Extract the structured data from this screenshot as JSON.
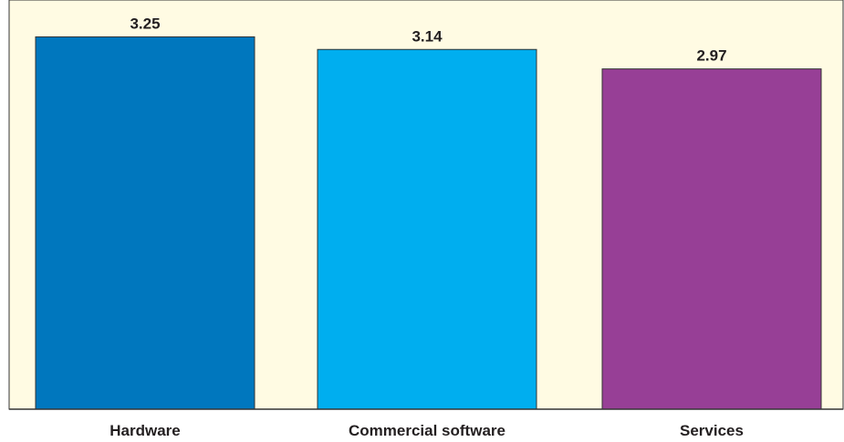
{
  "chart_data": {
    "type": "bar",
    "categories": [
      "Hardware",
      "Commercial software",
      "Services"
    ],
    "values": [
      3.25,
      3.14,
      2.97
    ],
    "value_labels": [
      "3.25",
      "3.14",
      "2.97"
    ],
    "colors": [
      "#0077be",
      "#00aeef",
      "#973f96"
    ],
    "background": "#fffbe3",
    "title": "",
    "xlabel": "",
    "ylabel": "",
    "ylim": [
      0,
      3.5
    ],
    "grid": false,
    "legend": "none"
  }
}
